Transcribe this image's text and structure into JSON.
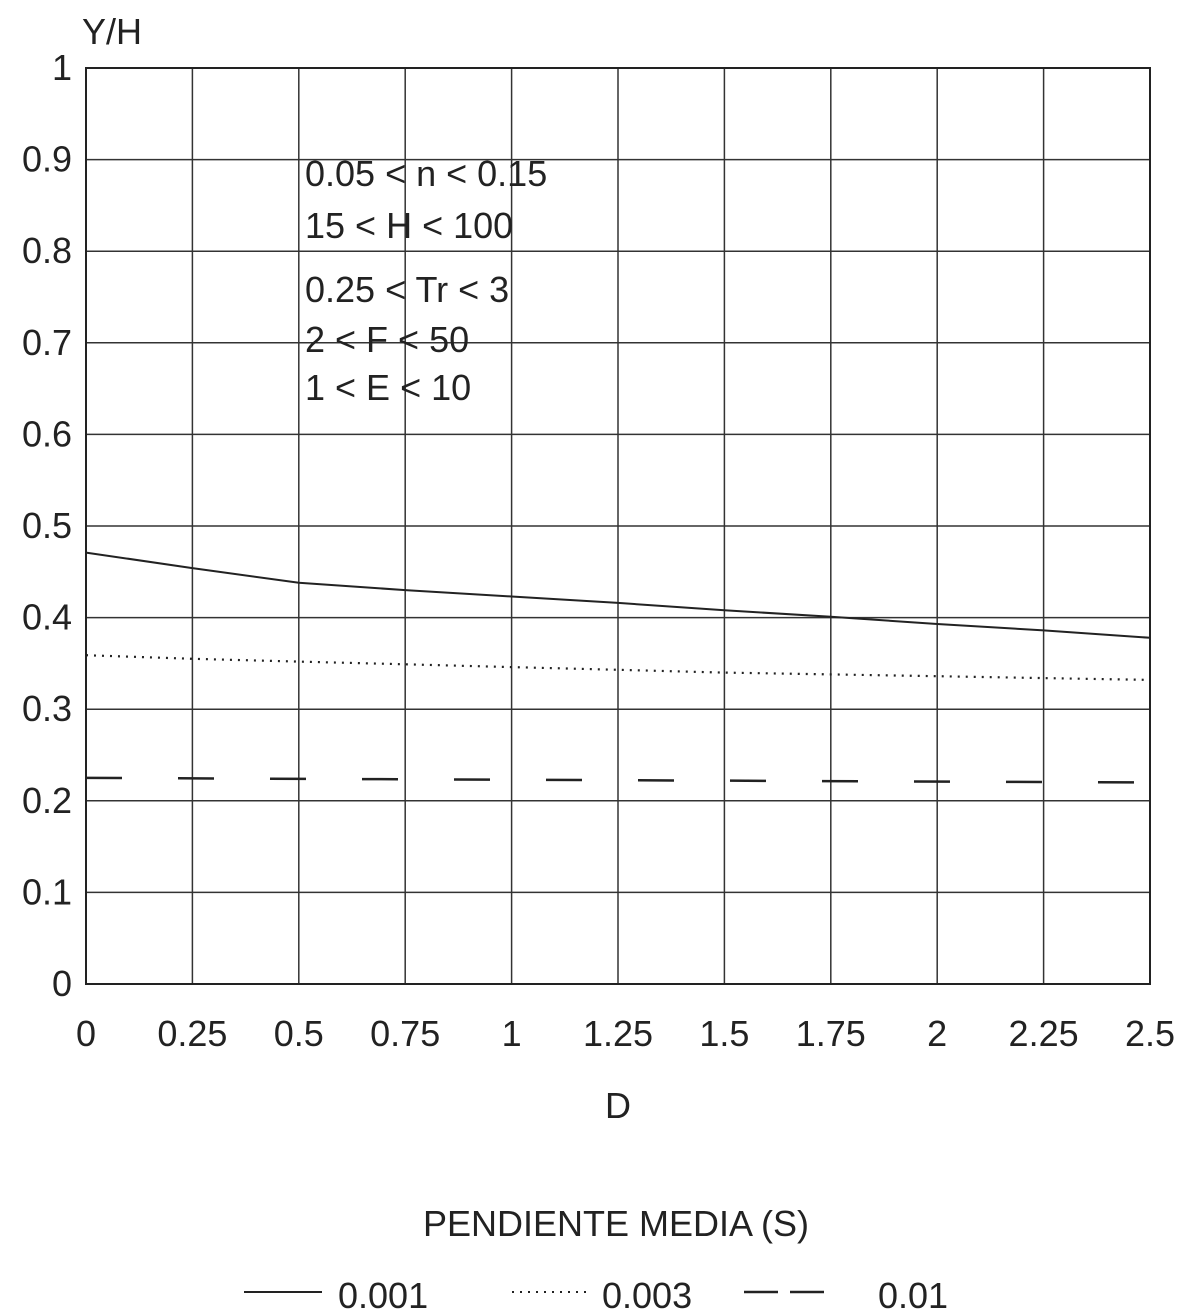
{
  "chart_data": {
    "type": "line",
    "xlabel": "D",
    "ylabel": "Y/H",
    "xlim": [
      0,
      2.5
    ],
    "ylim": [
      0,
      1
    ],
    "grid": true,
    "x_ticks": [
      "0",
      "0.25",
      "0.5",
      "0.75",
      "1",
      "1.25",
      "1.5",
      "1.75",
      "2",
      "2.25",
      "2.5"
    ],
    "y_ticks": [
      "0",
      "0.1",
      "0.2",
      "0.3",
      "0.4",
      "0.5",
      "0.6",
      "0.7",
      "0.8",
      "0.9",
      "1"
    ],
    "annotations": [
      "0.05 < n < 0.15",
      "15 < H < 100",
      "0.25 < Tr < 3",
      "2 < F < 50",
      "1 < E < 10"
    ],
    "legend_title": "PENDIENTE MEDIA (S)",
    "legend_position": "bottom",
    "series": [
      {
        "name": "0.001",
        "style": "solid",
        "x": [
          0,
          0.25,
          0.5,
          0.75,
          1,
          1.25,
          1.5,
          1.75,
          2,
          2.25,
          2.5
        ],
        "y": [
          0.471,
          0.454,
          0.438,
          0.43,
          0.423,
          0.416,
          0.408,
          0.401,
          0.393,
          0.386,
          0.378
        ]
      },
      {
        "name": "0.003",
        "style": "dotted",
        "x": [
          0,
          0.25,
          0.5,
          0.75,
          1,
          1.25,
          1.5,
          1.75,
          2,
          2.25,
          2.5
        ],
        "y": [
          0.359,
          0.355,
          0.352,
          0.349,
          0.346,
          0.343,
          0.34,
          0.338,
          0.336,
          0.334,
          0.332
        ]
      },
      {
        "name": "0.01",
        "style": "dashed",
        "x": [
          0,
          2.5
        ],
        "y": [
          0.225,
          0.22
        ]
      }
    ]
  }
}
